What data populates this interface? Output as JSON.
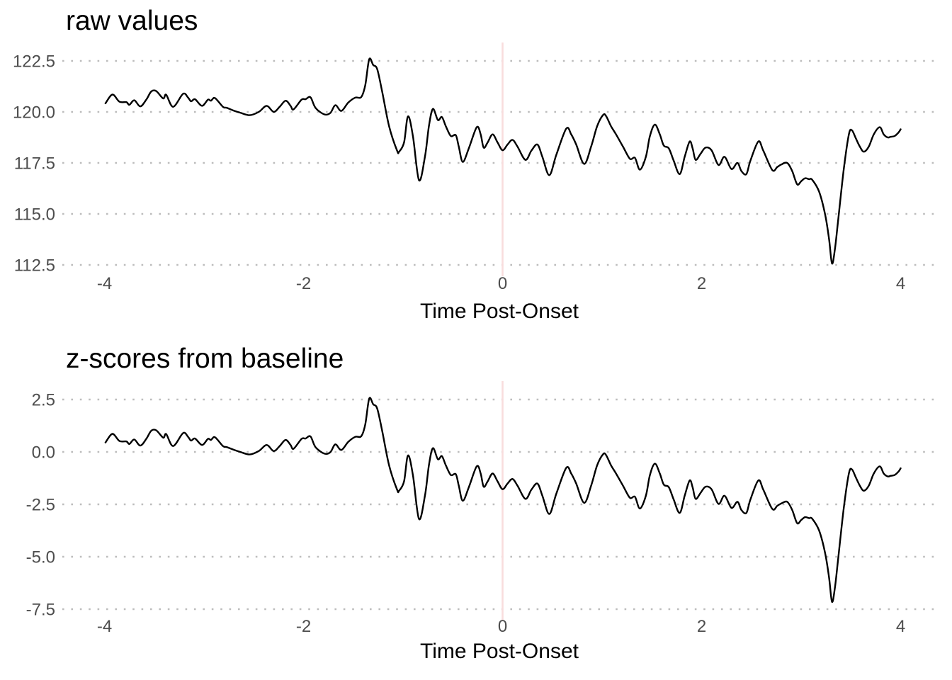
{
  "chart_data": {
    "type": "line",
    "xlabel": "Time Post-Onset",
    "xticks": [
      "-4",
      "-2",
      "0",
      "2",
      "4"
    ],
    "xtick_values": [
      -4,
      -2,
      0,
      2,
      4
    ],
    "xlim": [
      -4.42,
      4.36
    ],
    "vline_x": 0,
    "grid": "dotted horizontal lines at each y tick",
    "legend": "none",
    "colors": {
      "line": "#000000",
      "grid_dots": "#bdbdbd",
      "zero_vline": "#f9dddd",
      "tick_text": "#4d4d4d",
      "title_text": "#000000",
      "background": "#ffffff"
    },
    "x": [
      -3.99,
      -3.92,
      -3.85,
      -3.78,
      -3.75,
      -3.7,
      -3.64,
      -3.58,
      -3.53,
      -3.48,
      -3.41,
      -3.38,
      -3.31,
      -3.21,
      -3.16,
      -3.13,
      -3.09,
      -3.02,
      -2.96,
      -2.93,
      -2.89,
      -2.81,
      -2.77,
      -2.7,
      -2.63,
      -2.54,
      -2.45,
      -2.37,
      -2.3,
      -2.24,
      -2.18,
      -2.13,
      -2.1,
      -2.02,
      -1.98,
      -1.93,
      -1.88,
      -1.79,
      -1.73,
      -1.68,
      -1.62,
      -1.55,
      -1.48,
      -1.42,
      -1.38,
      -1.34,
      -1.3,
      -1.26,
      -1.21,
      -1.14,
      -1.06,
      -1.04,
      -0.99,
      -0.95,
      -0.9,
      -0.84,
      -0.78,
      -0.74,
      -0.7,
      -0.65,
      -0.61,
      -0.57,
      -0.52,
      -0.47,
      -0.44,
      -0.4,
      -0.34,
      -0.26,
      -0.22,
      -0.19,
      -0.15,
      -0.1,
      -0.05,
      0.0,
      0.05,
      0.1,
      0.15,
      0.23,
      0.29,
      0.35,
      0.4,
      0.47,
      0.54,
      0.64,
      0.69,
      0.74,
      0.82,
      0.89,
      0.95,
      1.01,
      1.04,
      1.09,
      1.14,
      1.21,
      1.28,
      1.33,
      1.38,
      1.44,
      1.48,
      1.53,
      1.58,
      1.62,
      1.67,
      1.72,
      1.78,
      1.83,
      1.88,
      1.91,
      1.94,
      1.99,
      2.04,
      2.1,
      2.17,
      2.23,
      2.3,
      2.36,
      2.4,
      2.45,
      2.49,
      2.57,
      2.62,
      2.71,
      2.76,
      2.8,
      2.86,
      2.91,
      2.96,
      3.0,
      3.04,
      3.08,
      3.11,
      3.18,
      3.24,
      3.28,
      3.31,
      3.34,
      3.37,
      3.43,
      3.48,
      3.51,
      3.55,
      3.59,
      3.63,
      3.68,
      3.73,
      3.79,
      3.83,
      3.87,
      3.9,
      3.94,
      3.98,
      4.0
    ],
    "panels": [
      {
        "title": "raw values",
        "series_name": "raw values",
        "yticks": [
          "122.5",
          "120.0",
          "117.5",
          "115.0",
          "112.5"
        ],
        "ytick_values": [
          122.5,
          120.0,
          117.5,
          115.0,
          112.5
        ],
        "ylim": [
          111.9,
          123.4
        ],
        "values": [
          120.42,
          120.85,
          120.5,
          120.48,
          120.35,
          120.57,
          120.27,
          120.6,
          121.0,
          121.02,
          120.66,
          120.84,
          120.25,
          120.89,
          120.7,
          120.52,
          120.62,
          120.3,
          120.6,
          120.55,
          120.68,
          120.25,
          120.2,
          120.06,
          119.95,
          119.84,
          120.0,
          120.3,
          120.0,
          120.25,
          120.55,
          120.3,
          120.12,
          120.6,
          120.62,
          120.72,
          120.2,
          119.88,
          119.95,
          120.33,
          120.05,
          120.46,
          120.7,
          120.73,
          121.3,
          122.58,
          122.3,
          122.1,
          121.0,
          119.3,
          118.1,
          118.05,
          118.5,
          119.78,
          118.8,
          116.65,
          117.8,
          119.3,
          120.15,
          119.6,
          119.75,
          119.3,
          118.82,
          118.86,
          118.3,
          117.55,
          118.2,
          119.25,
          118.9,
          118.25,
          118.5,
          118.9,
          118.5,
          118.12,
          118.4,
          118.63,
          118.3,
          117.65,
          118.1,
          118.4,
          117.8,
          116.9,
          117.9,
          119.18,
          118.9,
          118.4,
          117.45,
          118.3,
          119.3,
          119.85,
          119.8,
          119.3,
          118.9,
          118.3,
          117.7,
          117.75,
          117.17,
          117.8,
          118.8,
          119.38,
          118.9,
          118.35,
          118.22,
          117.6,
          116.95,
          117.8,
          118.55,
          118.2,
          117.65,
          117.95,
          118.25,
          118.12,
          117.4,
          117.8,
          117.2,
          117.5,
          117.1,
          116.95,
          117.6,
          118.55,
          118.1,
          117.15,
          117.3,
          117.42,
          117.5,
          117.1,
          116.45,
          116.6,
          116.75,
          116.7,
          116.68,
          116.1,
          115.0,
          113.8,
          112.57,
          113.3,
          114.6,
          117.25,
          118.9,
          119.1,
          118.7,
          118.3,
          118.05,
          118.3,
          118.9,
          119.25,
          118.9,
          118.75,
          118.78,
          118.82,
          119.0,
          119.15
        ]
      },
      {
        "title": "z-scores from baseline",
        "series_name": "z-scores from baseline",
        "yticks": [
          "2.5",
          "0.0",
          "-2.5",
          "-5.0",
          "-7.5"
        ],
        "ytick_values": [
          2.5,
          0.0,
          -2.5,
          -5.0,
          -7.5
        ],
        "ylim": [
          -8.2,
          3.4
        ],
        "values": [
          0.45,
          0.86,
          0.52,
          0.5,
          0.38,
          0.59,
          0.3,
          0.62,
          1.01,
          1.03,
          0.68,
          0.85,
          0.28,
          0.9,
          0.72,
          0.54,
          0.64,
          0.33,
          0.62,
          0.57,
          0.7,
          0.28,
          0.23,
          0.1,
          -0.01,
          -0.12,
          0.04,
          0.33,
          0.04,
          0.28,
          0.57,
          0.33,
          0.15,
          0.62,
          0.64,
          0.74,
          0.23,
          -0.08,
          -0.01,
          0.36,
          0.09,
          0.48,
          0.72,
          0.75,
          1.3,
          2.54,
          2.27,
          2.07,
          1.01,
          -0.64,
          -1.8,
          -1.85,
          -1.41,
          -0.17,
          -1.12,
          -3.2,
          -2.09,
          -0.64,
          0.18,
          -0.35,
          -0.2,
          -0.64,
          -1.1,
          -1.06,
          -1.61,
          -2.33,
          -1.7,
          -0.69,
          -1.03,
          -1.66,
          -1.41,
          -1.03,
          -1.41,
          -1.78,
          -1.51,
          -1.29,
          -1.61,
          -2.24,
          -1.8,
          -1.51,
          -2.09,
          -2.96,
          -1.99,
          -0.76,
          -1.03,
          -1.51,
          -2.43,
          -1.61,
          -0.64,
          -0.11,
          -0.15,
          -0.64,
          -1.03,
          -1.61,
          -2.19,
          -2.14,
          -2.7,
          -2.09,
          -1.12,
          -0.56,
          -1.03,
          -1.56,
          -1.68,
          -2.28,
          -2.91,
          -2.09,
          -1.36,
          -1.7,
          -2.24,
          -1.95,
          -1.66,
          -1.78,
          -2.48,
          -2.09,
          -2.67,
          -2.38,
          -2.77,
          -2.91,
          -2.28,
          -1.36,
          -1.8,
          -2.72,
          -2.57,
          -2.46,
          -2.38,
          -2.77,
          -3.4,
          -3.25,
          -3.11,
          -3.16,
          -3.18,
          -3.74,
          -4.8,
          -5.96,
          -7.15,
          -6.45,
          -5.19,
          -2.62,
          -1.03,
          -0.83,
          -1.22,
          -1.61,
          -1.85,
          -1.61,
          -1.03,
          -0.69,
          -1.03,
          -1.17,
          -1.14,
          -1.1,
          -0.93,
          -0.78
        ]
      }
    ]
  }
}
